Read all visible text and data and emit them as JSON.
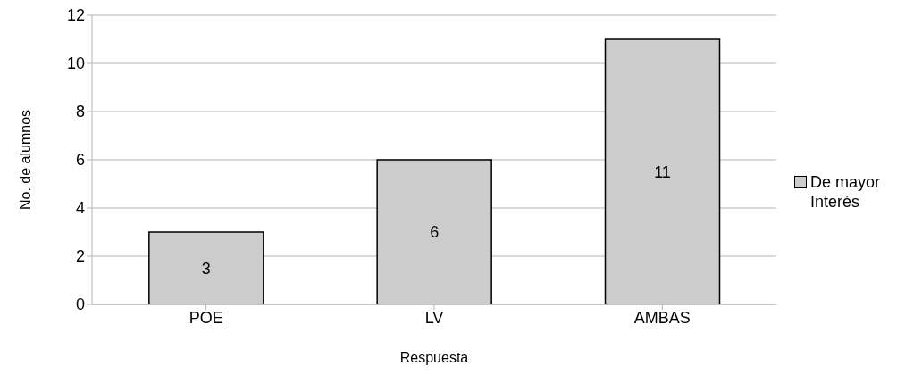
{
  "chart_data": {
    "type": "bar",
    "categories": [
      "POE",
      "LV",
      "AMBAS"
    ],
    "series": [
      {
        "name": "De mayor Interés",
        "color": "#cccccc",
        "values": [
          3,
          6,
          11
        ]
      }
    ],
    "xlabel": "Respuesta",
    "ylabel": "No. de alumnos",
    "ylim": [
      0,
      12
    ],
    "yticks": [
      0,
      2,
      4,
      6,
      8,
      10,
      12
    ],
    "grid": "y",
    "legend": "right",
    "data_labels": true
  }
}
